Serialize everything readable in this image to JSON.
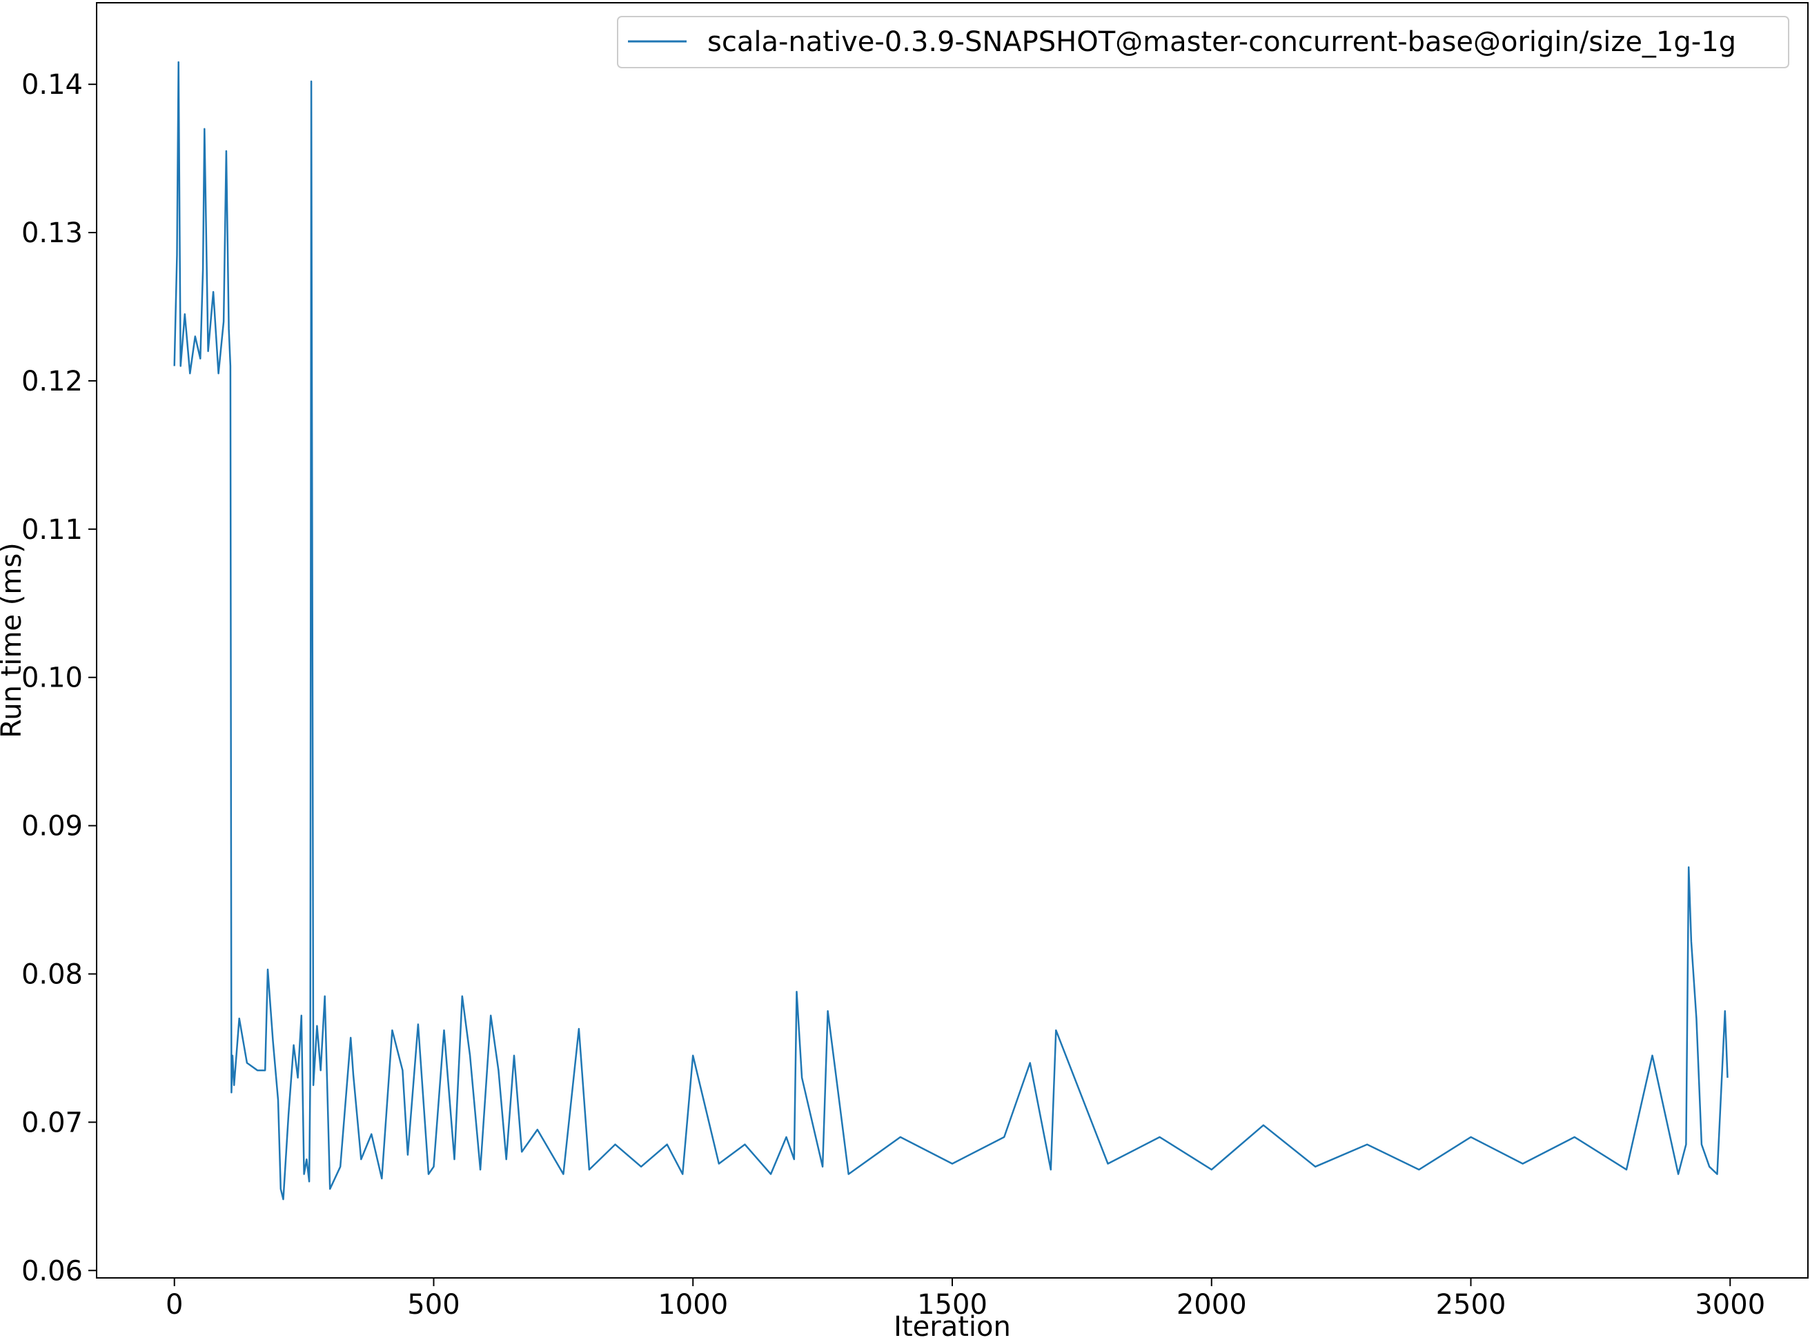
{
  "chart_data": {
    "type": "line",
    "title": "",
    "xlabel": "Iteration",
    "ylabel": "Run time (ms)",
    "xlim": [
      -150,
      3150
    ],
    "ylim": [
      0.0595,
      0.1455
    ],
    "xticks": [
      0,
      500,
      1000,
      1500,
      2000,
      2500,
      3000
    ],
    "xtick_labels": [
      "0",
      "500",
      "1000",
      "1500",
      "2000",
      "2500",
      "3000"
    ],
    "yticks": [
      0.06,
      0.07,
      0.08,
      0.09,
      0.1,
      0.11,
      0.12,
      0.13,
      0.14
    ],
    "ytick_labels": [
      "0.06",
      "0.07",
      "0.08",
      "0.09",
      "0.10",
      "0.11",
      "0.12",
      "0.13",
      "0.14"
    ],
    "grid": false,
    "legend": {
      "position": "top-right"
    },
    "series": [
      {
        "name": "scala-native-0.3.9-SNAPSHOT@master-concurrent-base@origin/size_1g-1g",
        "color": "#1f77b4",
        "x": [
          0,
          5,
          8,
          12,
          20,
          30,
          40,
          50,
          55,
          58,
          65,
          75,
          85,
          95,
          100,
          105,
          108,
          110,
          112,
          115,
          125,
          140,
          160,
          175,
          180,
          190,
          200,
          205,
          210,
          220,
          230,
          238,
          245,
          250,
          255,
          260,
          262,
          264,
          268,
          275,
          282,
          290,
          300,
          320,
          340,
          345,
          360,
          380,
          400,
          420,
          440,
          450,
          470,
          490,
          500,
          520,
          540,
          555,
          570,
          590,
          610,
          625,
          640,
          655,
          670,
          700,
          750,
          780,
          800,
          850,
          900,
          950,
          980,
          1000,
          1050,
          1100,
          1150,
          1180,
          1195,
          1200,
          1210,
          1250,
          1260,
          1300,
          1400,
          1500,
          1600,
          1650,
          1690,
          1700,
          1800,
          1900,
          2000,
          2100,
          2200,
          2300,
          2400,
          2500,
          2600,
          2700,
          2800,
          2850,
          2900,
          2915,
          2920,
          2925,
          2935,
          2945,
          2960,
          2975,
          2990,
          2995
        ],
        "values": [
          0.121,
          0.1285,
          0.1415,
          0.121,
          0.1245,
          0.1205,
          0.123,
          0.1215,
          0.1275,
          0.137,
          0.122,
          0.126,
          0.1205,
          0.124,
          0.1355,
          0.1235,
          0.121,
          0.072,
          0.0745,
          0.0725,
          0.077,
          0.074,
          0.0735,
          0.0735,
          0.0803,
          0.0755,
          0.0715,
          0.0655,
          0.0648,
          0.0705,
          0.0752,
          0.073,
          0.0772,
          0.0665,
          0.0675,
          0.066,
          0.073,
          0.1402,
          0.0725,
          0.0765,
          0.0735,
          0.0785,
          0.0655,
          0.067,
          0.0757,
          0.0732,
          0.0675,
          0.0692,
          0.0662,
          0.0762,
          0.0735,
          0.0678,
          0.0766,
          0.0665,
          0.067,
          0.0762,
          0.0675,
          0.0785,
          0.0745,
          0.0668,
          0.0772,
          0.0735,
          0.0675,
          0.0745,
          0.068,
          0.0695,
          0.0665,
          0.0763,
          0.0668,
          0.0685,
          0.067,
          0.0685,
          0.0665,
          0.0745,
          0.0672,
          0.0685,
          0.0665,
          0.069,
          0.0675,
          0.0788,
          0.073,
          0.067,
          0.0775,
          0.0665,
          0.069,
          0.0672,
          0.069,
          0.074,
          0.0668,
          0.0762,
          0.0672,
          0.069,
          0.0668,
          0.0698,
          0.067,
          0.0685,
          0.0668,
          0.069,
          0.0672,
          0.069,
          0.0668,
          0.0745,
          0.0665,
          0.0685,
          0.0872,
          0.0822,
          0.077,
          0.0685,
          0.067,
          0.0665,
          0.0775,
          0.073
        ]
      }
    ]
  }
}
